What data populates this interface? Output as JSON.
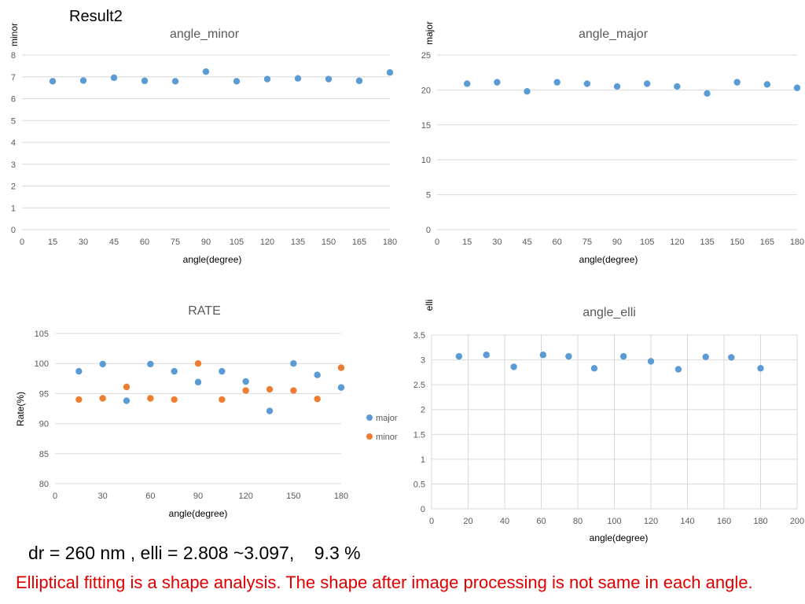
{
  "slide": {
    "title": "Result2",
    "summary": "dr = 260 nm , elli = 2.808 ~3.097,    9.3 %",
    "note": "Elliptical fitting is a shape analysis. The shape after image processing is not same in each angle."
  },
  "colors": {
    "series_blue": "#5b9bd5",
    "series_orange": "#ed7d31",
    "gridline": "#d9d9d9",
    "axis_text": "#595959",
    "note_text": "#e00000"
  },
  "chart_data": [
    {
      "type": "scatter",
      "title": "angle_minor",
      "xlabel": "angle(degree)",
      "ylabel": "minor",
      "xlim": [
        0,
        180
      ],
      "ylim": [
        0,
        8
      ],
      "xticks": [
        0,
        15,
        30,
        45,
        60,
        75,
        90,
        105,
        120,
        135,
        150,
        165,
        180
      ],
      "yticks": [
        0,
        1,
        2,
        3,
        4,
        5,
        6,
        7,
        8
      ],
      "grid": "horizontal",
      "series": [
        {
          "color": "#5b9bd5",
          "points": [
            [
              15,
              6.8
            ],
            [
              30,
              6.83
            ],
            [
              45,
              6.96
            ],
            [
              60,
              6.82
            ],
            [
              75,
              6.8
            ],
            [
              90,
              7.24
            ],
            [
              105,
              6.8
            ],
            [
              120,
              6.9
            ],
            [
              135,
              6.93
            ],
            [
              150,
              6.9
            ],
            [
              165,
              6.82
            ],
            [
              180,
              7.2
            ]
          ]
        }
      ]
    },
    {
      "type": "scatter",
      "title": "angle_major",
      "xlabel": "angle(degree)",
      "ylabel": "major",
      "xlim": [
        0,
        180
      ],
      "ylim": [
        0,
        25
      ],
      "xticks": [
        0,
        15,
        30,
        45,
        60,
        75,
        90,
        105,
        120,
        135,
        150,
        165,
        180
      ],
      "yticks": [
        0,
        5,
        10,
        15,
        20,
        25
      ],
      "grid": "horizontal",
      "series": [
        {
          "color": "#5b9bd5",
          "points": [
            [
              15,
              20.9
            ],
            [
              30,
              21.1
            ],
            [
              45,
              19.8
            ],
            [
              60,
              21.1
            ],
            [
              75,
              20.9
            ],
            [
              90,
              20.5
            ],
            [
              105,
              20.9
            ],
            [
              120,
              20.5
            ],
            [
              135,
              19.5
            ],
            [
              150,
              21.1
            ],
            [
              165,
              20.8
            ],
            [
              180,
              20.3
            ]
          ]
        }
      ]
    },
    {
      "type": "scatter",
      "title": "RATE",
      "xlabel": "angle(degree)",
      "ylabel": "Rate(%)",
      "xlim": [
        0,
        180
      ],
      "ylim": [
        80,
        105
      ],
      "xticks": [
        0,
        30,
        60,
        90,
        120,
        150,
        180
      ],
      "yticks": [
        80,
        85,
        90,
        95,
        100,
        105
      ],
      "grid": "horizontal",
      "legend": "right",
      "series": [
        {
          "name": "major",
          "color": "#5b9bd5",
          "points": [
            [
              15,
              98.7
            ],
            [
              30,
              99.9
            ],
            [
              45,
              93.8
            ],
            [
              60,
              99.9
            ],
            [
              75,
              98.7
            ],
            [
              90,
              96.9
            ],
            [
              105,
              98.7
            ],
            [
              120,
              97.0
            ],
            [
              135,
              92.1
            ],
            [
              150,
              100.0
            ],
            [
              165,
              98.1
            ],
            [
              180,
              96.0
            ]
          ]
        },
        {
          "name": "minor",
          "color": "#ed7d31",
          "points": [
            [
              15,
              94.0
            ],
            [
              30,
              94.2
            ],
            [
              45,
              96.1
            ],
            [
              60,
              94.2
            ],
            [
              75,
              94.0
            ],
            [
              90,
              100.0
            ],
            [
              105,
              94.0
            ],
            [
              120,
              95.5
            ],
            [
              135,
              95.7
            ],
            [
              150,
              95.5
            ],
            [
              165,
              94.1
            ],
            [
              180,
              99.3
            ]
          ]
        }
      ]
    },
    {
      "type": "scatter",
      "title": "angle_elli",
      "xlabel": "angle(degree)",
      "ylabel": "elli",
      "xlim": [
        0,
        200
      ],
      "ylim": [
        0,
        3.5
      ],
      "xticks": [
        0,
        20,
        40,
        60,
        80,
        100,
        120,
        140,
        160,
        180,
        200
      ],
      "yticks": [
        0,
        0.5,
        1,
        1.5,
        2,
        2.5,
        3,
        3.5
      ],
      "grid": "both",
      "series": [
        {
          "color": "#5b9bd5",
          "points": [
            [
              15,
              3.07
            ],
            [
              30,
              3.1
            ],
            [
              45,
              2.86
            ],
            [
              61,
              3.1
            ],
            [
              75,
              3.07
            ],
            [
              89,
              2.83
            ],
            [
              105,
              3.07
            ],
            [
              120,
              2.97
            ],
            [
              135,
              2.81
            ],
            [
              150,
              3.06
            ],
            [
              164,
              3.05
            ],
            [
              180,
              2.83
            ]
          ]
        }
      ]
    }
  ]
}
